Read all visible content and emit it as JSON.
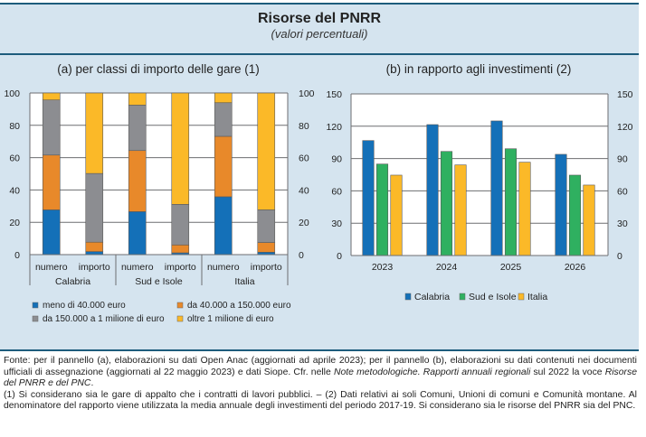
{
  "header": {
    "title": "Risorse del PNRR",
    "subtitle": "(valori percentuali)"
  },
  "chart_data": [
    {
      "type": "bar",
      "stacked": true,
      "title": "(a) per classi di importo delle gare (1)",
      "groups": [
        "Calabria",
        "Sud e Isole",
        "Italia"
      ],
      "categories": [
        "numero",
        "importo",
        "numero",
        "importo",
        "numero",
        "importo"
      ],
      "ylim": [
        0,
        100
      ],
      "yticks": [
        0,
        20,
        40,
        60,
        80,
        100
      ],
      "ytick_labels": [
        "0",
        "20",
        "40",
        "60",
        "80",
        "100"
      ],
      "grid": true,
      "legend_placement": "bottom",
      "series": [
        {
          "name": "meno di 40.000 euro",
          "color": "#1470b8",
          "values": [
            27.7,
            1.9,
            26.6,
            1.1,
            35.8,
            1.5
          ]
        },
        {
          "name": "da 40.000 a 150.000 euro",
          "color": "#e8892a",
          "values": [
            33.9,
            5.8,
            37.8,
            4.9,
            37.4,
            6.0
          ]
        },
        {
          "name": "da 150.000 a 1 milione di euro",
          "color": "#8c8d91",
          "values": [
            34.1,
            42.5,
            28.1,
            25.1,
            20.8,
            20.2
          ]
        },
        {
          "name": "oltre 1 milione di euro",
          "color": "#fbb928",
          "values": [
            4.3,
            49.8,
            7.5,
            68.9,
            6.0,
            72.3
          ]
        }
      ]
    },
    {
      "type": "bar",
      "stacked": false,
      "title": "(b) in rapporto agli investimenti (2)",
      "categories": [
        "2023",
        "2024",
        "2025",
        "2026"
      ],
      "ylim": [
        0,
        150
      ],
      "yticks": [
        0,
        30,
        60,
        90,
        120,
        150
      ],
      "ytick_labels": [
        "0",
        "30",
        "60",
        "90",
        "120",
        "150"
      ],
      "grid": true,
      "legend_placement": "bottom",
      "series": [
        {
          "name": "Calabria",
          "color": "#1470b8",
          "values": [
            106.7,
            121.5,
            124.9,
            93.9
          ]
        },
        {
          "name": "Sud e Isole",
          "color": "#2fb060",
          "values": [
            84.9,
            96.6,
            99.1,
            74.6
          ]
        },
        {
          "name": "Italia",
          "color": "#fbb928",
          "values": [
            74.6,
            84.1,
            86.6,
            65.4
          ]
        }
      ]
    }
  ],
  "notes": {
    "fonte_1": "Fonte: per il pannello (a), elaborazioni su dati Open Anac (aggiornati ad aprile 2023); per il pannello (b), elaborazioni su dati contenuti nei documenti ufficiali di assegnazione (aggiornati al 22 maggio 2023) e dati Siope. Cfr. nelle ",
    "fonte_italic_1": "Note metodologiche. Rapporti annuali regionali",
    "fonte_2": " sul 2022 la voce ",
    "fonte_italic_2": "Risorse del PNRR e del PNC",
    "fonte_3": ".",
    "footnote": "(1) Si considerano sia le gare di appalto che i contratti di lavori pubblici. – (2) Dati relativi ai soli Comuni, Unioni di comuni e Comunità montane. Al denominatore del rapporto viene utilizzata la media annuale degli investimenti del periodo 2017-19. Si considerano sia le risorse del PNRR sia del PNC."
  }
}
